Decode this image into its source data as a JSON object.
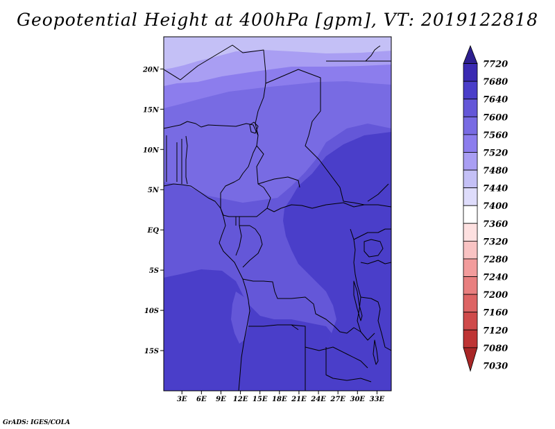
{
  "title": "Geopotential Height at 400hPa [gpm], VT: 2019122818",
  "credit": "GrADS: IGES/COLA",
  "map": {
    "lon_labels": [
      "3E",
      "6E",
      "9E",
      "12E",
      "15E",
      "18E",
      "21E",
      "24E",
      "27E",
      "30E",
      "33E"
    ],
    "lat_labels": [
      "20N",
      "15N",
      "10N",
      "5N",
      "EQ",
      "5S",
      "10S",
      "15S"
    ],
    "fill_colors": {
      "c7440": "#c4c0f6",
      "c7480": "#a99ef3",
      "c7520": "#8c7ded",
      "c7560": "#786be3",
      "c7600": "#6457d8",
      "c7640": "#4a3ec9"
    }
  },
  "colorbar": {
    "labels": [
      "7720",
      "7680",
      "7640",
      "7600",
      "7560",
      "7520",
      "7480",
      "7440",
      "7400",
      "7360",
      "7320",
      "7280",
      "7240",
      "7200",
      "7160",
      "7120",
      "7080",
      "7030"
    ],
    "colors": [
      "#2d1f8f",
      "#3a2ab2",
      "#4a3ec9",
      "#6457d8",
      "#786be3",
      "#8c7ded",
      "#a99ef3",
      "#c4c0f6",
      "#dedcfb",
      "#ffffff",
      "#fde0e0",
      "#f9c3c3",
      "#f29c9c",
      "#e87f7f",
      "#dd6464",
      "#cf4a4a",
      "#be3434",
      "#a82626"
    ]
  }
}
